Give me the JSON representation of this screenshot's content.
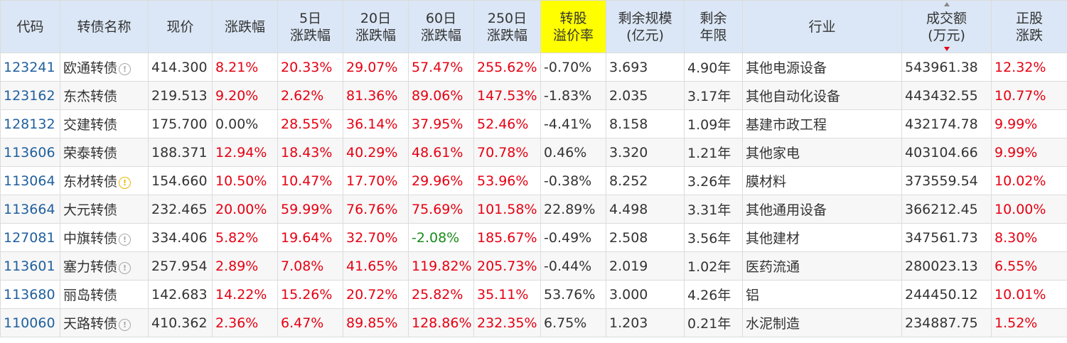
{
  "headers": [
    {
      "key": "code",
      "l1": "代码",
      "l2": ""
    },
    {
      "key": "name",
      "l1": "转债名称",
      "l2": ""
    },
    {
      "key": "price",
      "l1": "现价",
      "l2": ""
    },
    {
      "key": "chg",
      "l1": "涨跌幅",
      "l2": ""
    },
    {
      "key": "chg5",
      "l1": "5日",
      "l2": "涨跌幅"
    },
    {
      "key": "chg20",
      "l1": "20日",
      "l2": "涨跌幅"
    },
    {
      "key": "chg60",
      "l1": "60日",
      "l2": "涨跌幅"
    },
    {
      "key": "chg250",
      "l1": "250日",
      "l2": "涨跌幅"
    },
    {
      "key": "premium",
      "l1": "转股",
      "l2": "溢价率"
    },
    {
      "key": "scale",
      "l1": "剩余规模",
      "l2": "(亿元)"
    },
    {
      "key": "years",
      "l1": "剩余",
      "l2": "年限"
    },
    {
      "key": "industry",
      "l1": "行业",
      "l2": ""
    },
    {
      "key": "volume",
      "l1": "成交额",
      "l2": "(万元)"
    },
    {
      "key": "stock_chg",
      "l1": "正股",
      "l2": "涨跌"
    }
  ],
  "sorted_column": "volume",
  "sort_direction": "desc",
  "highlight_column": "premium",
  "colors": {
    "up": "#e60012",
    "down": "#1a8c1a",
    "header_bg": "#dbe7f6",
    "highlight": "#ffff00",
    "code": "#1f5f9e"
  },
  "rows": [
    {
      "code": "123241",
      "name": "欧通转债",
      "icon": "info-icon",
      "price": "414.300",
      "chg": "8.21%",
      "chg5": "20.33%",
      "chg20": "29.07%",
      "chg60": "57.47%",
      "chg250": "255.62%",
      "premium": "-0.70%",
      "scale": "3.693",
      "years": "4.90年",
      "industry": "其他电源设备",
      "volume": "543961.38",
      "stock_chg": "12.32%"
    },
    {
      "code": "123162",
      "name": "东杰转债",
      "icon": "",
      "price": "219.513",
      "chg": "9.20%",
      "chg5": "2.62%",
      "chg20": "81.36%",
      "chg60": "89.06%",
      "chg250": "147.53%",
      "premium": "-1.83%",
      "scale": "2.035",
      "years": "3.17年",
      "industry": "其他自动化设备",
      "volume": "443432.55",
      "stock_chg": "10.77%"
    },
    {
      "code": "128132",
      "name": "交建转债",
      "icon": "",
      "price": "175.700",
      "chg": "0.00%",
      "chg5": "28.55%",
      "chg20": "36.14%",
      "chg60": "37.95%",
      "chg250": "52.46%",
      "premium": "-4.41%",
      "scale": "8.158",
      "years": "1.09年",
      "industry": "基建市政工程",
      "volume": "432174.78",
      "stock_chg": "9.99%"
    },
    {
      "code": "113606",
      "name": "荣泰转债",
      "icon": "",
      "price": "188.371",
      "chg": "12.94%",
      "chg5": "18.43%",
      "chg20": "40.29%",
      "chg60": "48.61%",
      "chg250": "70.78%",
      "premium": "0.46%",
      "scale": "3.320",
      "years": "1.21年",
      "industry": "其他家电",
      "volume": "403104.66",
      "stock_chg": "9.99%"
    },
    {
      "code": "113064",
      "name": "东材转债",
      "icon": "warning-icon",
      "price": "154.660",
      "chg": "10.50%",
      "chg5": "10.47%",
      "chg20": "17.70%",
      "chg60": "29.96%",
      "chg250": "53.96%",
      "premium": "-0.38%",
      "scale": "8.252",
      "years": "3.26年",
      "industry": "膜材料",
      "volume": "373559.54",
      "stock_chg": "10.02%"
    },
    {
      "code": "113664",
      "name": "大元转债",
      "icon": "",
      "price": "232.465",
      "chg": "20.00%",
      "chg5": "59.99%",
      "chg20": "76.76%",
      "chg60": "75.69%",
      "chg250": "101.58%",
      "premium": "22.89%",
      "scale": "4.498",
      "years": "3.31年",
      "industry": "其他通用设备",
      "volume": "366212.45",
      "stock_chg": "10.00%"
    },
    {
      "code": "127081",
      "name": "中旗转债",
      "icon": "info-icon",
      "price": "334.406",
      "chg": "5.82%",
      "chg5": "19.64%",
      "chg20": "32.70%",
      "chg60": "-2.08%",
      "chg250": "185.67%",
      "premium": "-0.49%",
      "scale": "2.508",
      "years": "3.56年",
      "industry": "其他建材",
      "volume": "347561.73",
      "stock_chg": "8.30%"
    },
    {
      "code": "113601",
      "name": "塞力转债",
      "icon": "info-icon",
      "price": "257.954",
      "chg": "2.89%",
      "chg5": "7.08%",
      "chg20": "41.65%",
      "chg60": "119.82%",
      "chg250": "205.73%",
      "premium": "-0.44%",
      "scale": "2.019",
      "years": "1.02年",
      "industry": "医药流通",
      "volume": "280023.13",
      "stock_chg": "6.55%"
    },
    {
      "code": "113680",
      "name": "丽岛转债",
      "icon": "",
      "price": "142.683",
      "chg": "14.22%",
      "chg5": "15.26%",
      "chg20": "20.72%",
      "chg60": "25.82%",
      "chg250": "35.11%",
      "premium": "53.76%",
      "scale": "3.000",
      "years": "4.26年",
      "industry": "铝",
      "volume": "244450.12",
      "stock_chg": "10.01%"
    },
    {
      "code": "110060",
      "name": "天路转债",
      "icon": "info-icon",
      "price": "410.362",
      "chg": "2.36%",
      "chg5": "6.47%",
      "chg20": "89.85%",
      "chg60": "128.86%",
      "chg250": "232.35%",
      "premium": "6.75%",
      "scale": "1.203",
      "years": "0.21年",
      "industry": "水泥制造",
      "volume": "234887.75",
      "stock_chg": "1.52%"
    }
  ]
}
